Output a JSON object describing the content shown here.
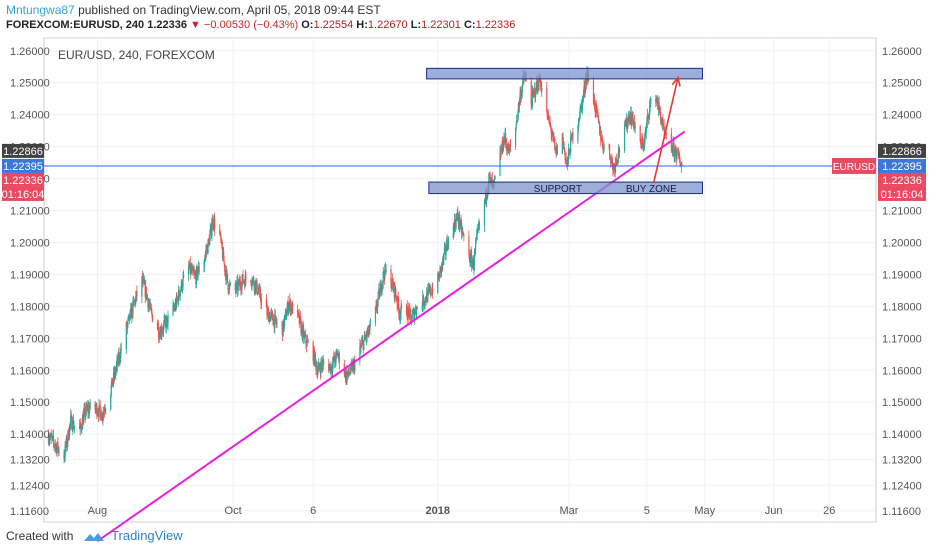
{
  "header": {
    "author": "Mntungwa87",
    "published_text": "published on TradingView.com, April 05, 2018 09:44 EST"
  },
  "symbol_line": {
    "symbol": "FOREXCOM:EURUSD, 240",
    "last": "1.22336",
    "arrow": "▼",
    "change": "−0.00530 (−0.43%)",
    "o_label": "O:",
    "o_value": "1.22554",
    "h_label": "H:",
    "h_value": "1.22670",
    "l_label": "L:",
    "l_value": "1.22301",
    "c_label": "C:",
    "c_value": "1.22336"
  },
  "footer": {
    "created_with": "Created with",
    "brand": "TradingView"
  },
  "colors": {
    "up": "#26a69a",
    "down": "#ef5350",
    "trendline": "#e91ee0",
    "zone_fill": "#7b93cc",
    "zone_stroke": "#1b2a80",
    "blue_line": "#2962ff",
    "arrow": "#e53935",
    "badge_dark": "#424242",
    "badge_blue": "#3d78d8",
    "badge_red": "#e84a5f"
  },
  "chart_data": {
    "type": "candlestick",
    "title": "EUR/USD, 240, FOREXCOM",
    "y_ticks": [
      "1.26000",
      "1.25000",
      "1.24000",
      "1.23000",
      "1.22000",
      "1.21000",
      "1.20000",
      "1.19000",
      "1.18000",
      "1.17000",
      "1.16000",
      "1.15000",
      "1.14000",
      "1.13200",
      "1.12400",
      "1.11600"
    ],
    "x_ticks": [
      "Aug",
      "Oct",
      "6",
      "2018",
      "Mar",
      "5",
      "May",
      "Jun",
      "26"
    ],
    "ylim": [
      1.1125,
      1.264
    ],
    "badges": [
      {
        "text": "1.22866",
        "value": 1.22866,
        "kind": "dark"
      },
      {
        "text": "1.22395",
        "value": 1.22395,
        "kind": "blue"
      },
      {
        "text": "1.22336",
        "value": 1.22336,
        "kind": "red"
      },
      {
        "text": "01:16:04",
        "value": 1.2189,
        "kind": "red"
      }
    ],
    "symbol_badge": "EURUSD",
    "horizontal_line": 1.22395,
    "resistance_zone": {
      "start": "2017-12-27",
      "end": "2018-04-30",
      "low": 1.2512,
      "high": 1.2545
    },
    "support_zone": {
      "start": "2017-12-28",
      "end": "2018-04-30",
      "low": 1.2153,
      "high": 1.2189
    },
    "zone_labels": [
      "SUPPORT",
      "BUY ZONE"
    ],
    "trendline": [
      {
        "date": "2017-08-01",
        "price": 1.1065
      },
      {
        "date": "2018-04-22",
        "price": 1.2347
      }
    ],
    "projection_arrow": [
      {
        "date": "2018-04-08",
        "price": 1.2185
      },
      {
        "date": "2018-04-19",
        "price": 1.2516
      }
    ],
    "price_path": [
      {
        "date": "2017-07-10",
        "price": 1.1395
      },
      {
        "date": "2017-07-17",
        "price": 1.133
      },
      {
        "date": "2017-07-20",
        "price": 1.144
      },
      {
        "date": "2017-07-24",
        "price": 1.141
      },
      {
        "date": "2017-07-26",
        "price": 1.146
      },
      {
        "date": "2017-07-28",
        "price": 1.148
      },
      {
        "date": "2017-08-01",
        "price": 1.148
      },
      {
        "date": "2017-08-03",
        "price": 1.146
      },
      {
        "date": "2017-08-07",
        "price": 1.154
      },
      {
        "date": "2017-08-10",
        "price": 1.162
      },
      {
        "date": "2017-08-14",
        "price": 1.173
      },
      {
        "date": "2017-08-18",
        "price": 1.182
      },
      {
        "date": "2017-08-21",
        "price": 1.188
      },
      {
        "date": "2017-08-23",
        "price": 1.184
      },
      {
        "date": "2017-08-25",
        "price": 1.178
      },
      {
        "date": "2017-08-29",
        "price": 1.172
      },
      {
        "date": "2017-09-01",
        "price": 1.175
      },
      {
        "date": "2017-09-05",
        "price": 1.18
      },
      {
        "date": "2017-09-08",
        "price": 1.187
      },
      {
        "date": "2017-09-11",
        "price": 1.192
      },
      {
        "date": "2017-09-14",
        "price": 1.189
      },
      {
        "date": "2017-09-18",
        "price": 1.195
      },
      {
        "date": "2017-09-20",
        "price": 1.2
      },
      {
        "date": "2017-09-22",
        "price": 1.207
      },
      {
        "date": "2017-09-25",
        "price": 1.202
      },
      {
        "date": "2017-09-27",
        "price": 1.193
      },
      {
        "date": "2017-09-29",
        "price": 1.186
      },
      {
        "date": "2017-10-02",
        "price": 1.185
      },
      {
        "date": "2017-10-05",
        "price": 1.188
      },
      {
        "date": "2017-10-09",
        "price": 1.189
      },
      {
        "date": "2017-10-11",
        "price": 1.187
      },
      {
        "date": "2017-10-16",
        "price": 1.178
      },
      {
        "date": "2017-10-19",
        "price": 1.176
      },
      {
        "date": "2017-10-23",
        "price": 1.172
      },
      {
        "date": "2017-10-26",
        "price": 1.181
      },
      {
        "date": "2017-10-30",
        "price": 1.177
      },
      {
        "date": "2017-11-02",
        "price": 1.17
      },
      {
        "date": "2017-11-06",
        "price": 1.165
      },
      {
        "date": "2017-11-08",
        "price": 1.16
      },
      {
        "date": "2017-11-10",
        "price": 1.162
      },
      {
        "date": "2017-11-14",
        "price": 1.161
      },
      {
        "date": "2017-11-17",
        "price": 1.165
      },
      {
        "date": "2017-11-21",
        "price": 1.158
      },
      {
        "date": "2017-11-24",
        "price": 1.161
      },
      {
        "date": "2017-11-28",
        "price": 1.168
      },
      {
        "date": "2017-12-01",
        "price": 1.172
      },
      {
        "date": "2017-12-04",
        "price": 1.178
      },
      {
        "date": "2017-12-06",
        "price": 1.185
      },
      {
        "date": "2017-12-08",
        "price": 1.191
      },
      {
        "date": "2017-12-11",
        "price": 1.188
      },
      {
        "date": "2017-12-13",
        "price": 1.184
      },
      {
        "date": "2017-12-15",
        "price": 1.178
      },
      {
        "date": "2017-12-18",
        "price": 1.179
      },
      {
        "date": "2017-12-20",
        "price": 1.176
      },
      {
        "date": "2017-12-22",
        "price": 1.179
      },
      {
        "date": "2017-12-27",
        "price": 1.183
      },
      {
        "date": "2018-01-01",
        "price": 1.188
      },
      {
        "date": "2018-01-03",
        "price": 1.193
      },
      {
        "date": "2018-01-05",
        "price": 1.199
      },
      {
        "date": "2018-01-08",
        "price": 1.205
      },
      {
        "date": "2018-01-10",
        "price": 1.208
      },
      {
        "date": "2018-01-12",
        "price": 1.203
      },
      {
        "date": "2018-01-15",
        "price": 1.196
      },
      {
        "date": "2018-01-17",
        "price": 1.193
      },
      {
        "date": "2018-01-19",
        "price": 1.203
      },
      {
        "date": "2018-01-22",
        "price": 1.212
      },
      {
        "date": "2018-01-24",
        "price": 1.22
      },
      {
        "date": "2018-01-26",
        "price": 1.217
      },
      {
        "date": "2018-01-29",
        "price": 1.227
      },
      {
        "date": "2018-01-31",
        "price": 1.233
      },
      {
        "date": "2018-02-02",
        "price": 1.228
      },
      {
        "date": "2018-02-05",
        "price": 1.236
      },
      {
        "date": "2018-02-07",
        "price": 1.246
      },
      {
        "date": "2018-02-09",
        "price": 1.252
      },
      {
        "date": "2018-02-12",
        "price": 1.244
      },
      {
        "date": "2018-02-14",
        "price": 1.248
      },
      {
        "date": "2018-02-16",
        "price": 1.251
      },
      {
        "date": "2018-02-19",
        "price": 1.24
      },
      {
        "date": "2018-02-21",
        "price": 1.235
      },
      {
        "date": "2018-02-23",
        "price": 1.228
      },
      {
        "date": "2018-02-26",
        "price": 1.233
      },
      {
        "date": "2018-02-28",
        "price": 1.224
      },
      {
        "date": "2018-03-02",
        "price": 1.232
      },
      {
        "date": "2018-03-05",
        "price": 1.238
      },
      {
        "date": "2018-03-07",
        "price": 1.244
      },
      {
        "date": "2018-03-09",
        "price": 1.253
      },
      {
        "date": "2018-03-12",
        "price": 1.245
      },
      {
        "date": "2018-03-14",
        "price": 1.238
      },
      {
        "date": "2018-03-16",
        "price": 1.231
      },
      {
        "date": "2018-03-19",
        "price": 1.229
      },
      {
        "date": "2018-03-21",
        "price": 1.223
      },
      {
        "date": "2018-03-23",
        "price": 1.228
      },
      {
        "date": "2018-03-26",
        "price": 1.235
      },
      {
        "date": "2018-03-28",
        "price": 1.24
      },
      {
        "date": "2018-03-30",
        "price": 1.238
      },
      {
        "date": "2018-04-02",
        "price": 1.23
      },
      {
        "date": "2018-04-04",
        "price": 1.232
      },
      {
        "date": "2018-04-06",
        "price": 1.242
      },
      {
        "date": "2018-04-09",
        "price": 1.246
      },
      {
        "date": "2018-04-11",
        "price": 1.24
      },
      {
        "date": "2018-04-13",
        "price": 1.233
      },
      {
        "date": "2018-04-16",
        "price": 1.23
      },
      {
        "date": "2018-04-19",
        "price": 1.227
      },
      {
        "date": "2018-04-21",
        "price": 1.2236
      }
    ]
  }
}
